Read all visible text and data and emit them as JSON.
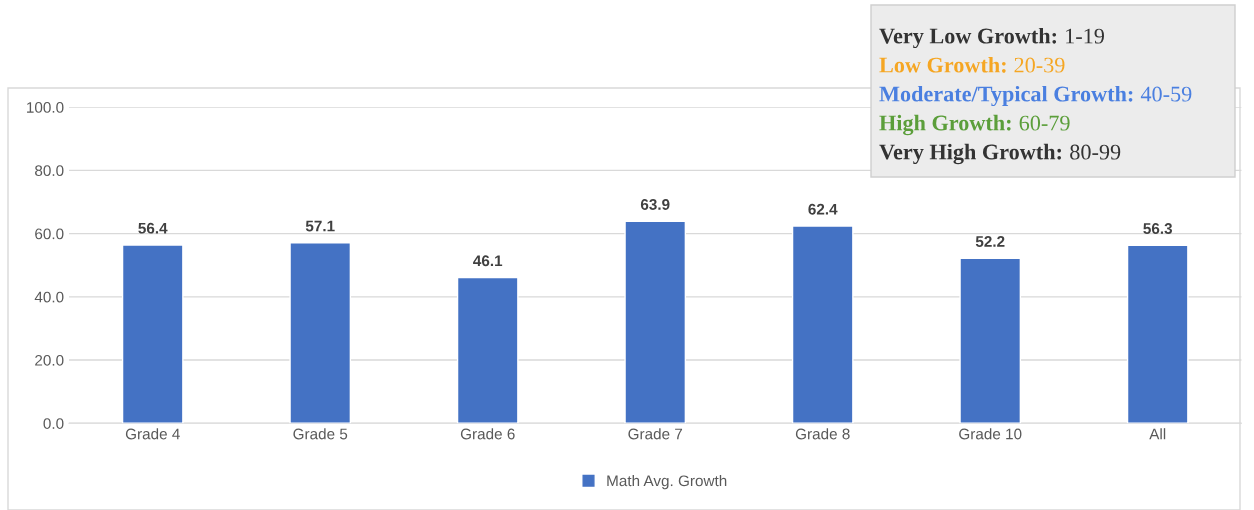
{
  "chart_data": {
    "type": "bar",
    "categories": [
      "Grade 4",
      "Grade 5",
      "Grade 6",
      "Grade 7",
      "Grade 8",
      "Grade 10",
      "All"
    ],
    "series": [
      {
        "name": "Math Avg. Growth",
        "color": "#4472c4",
        "values": [
          56.4,
          57.1,
          46.1,
          63.9,
          62.4,
          52.2,
          56.3
        ]
      }
    ],
    "ylim": [
      0,
      100
    ],
    "yticks": [
      {
        "value": 0,
        "label": "0.0"
      },
      {
        "value": 20,
        "label": "20.0"
      },
      {
        "value": 40,
        "label": "40.0"
      },
      {
        "value": 60,
        "label": "60.0"
      },
      {
        "value": 80,
        "label": "80.0"
      },
      {
        "value": 100,
        "label": "100.0"
      }
    ],
    "grid": "y",
    "legend": "bottom",
    "data_labels": true,
    "annotations": [
      "Very Low Growth: 1-19",
      "Low Growth: 20-39",
      "Moderate/Typical Growth: 40-59",
      "High Growth: 60-79",
      "Very High Growth: 80-99"
    ]
  }
}
